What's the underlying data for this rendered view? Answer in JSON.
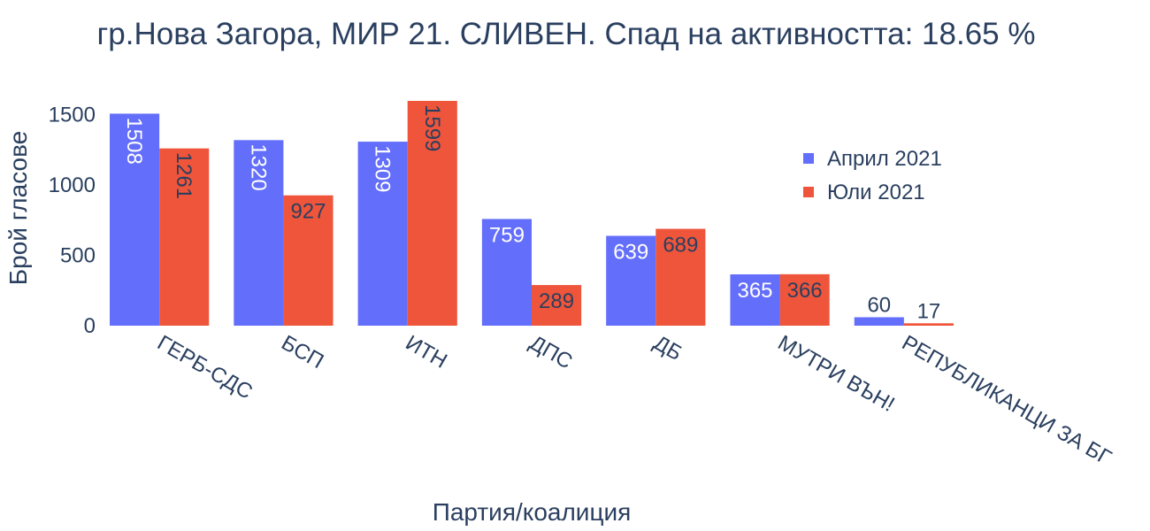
{
  "colors": {
    "series1": "#636efa",
    "series2": "#ef553b",
    "text": "#2a3f5f",
    "label_inside": "#ffffff",
    "label_outside": "#2a3f5f"
  },
  "chart_data": {
    "type": "bar",
    "title": "гр.Нова Загора, МИР 21. СЛИВЕН. Спад на активността: 18.65 %",
    "xlabel": "Партия/коалиция",
    "ylabel": "Брой гласове",
    "categories": [
      "ГЕРБ-СДС",
      "БСП",
      "ИТН",
      "ДПС",
      "ДБ",
      "МУТРИ ВЪН!",
      "РЕПУБЛИКАНЦИ ЗА БГ"
    ],
    "series": [
      {
        "name": "Април 2021",
        "values": [
          1508,
          1320,
          1309,
          759,
          639,
          365,
          60
        ]
      },
      {
        "name": "Юли 2021",
        "values": [
          1261,
          927,
          1599,
          289,
          689,
          366,
          17
        ]
      }
    ],
    "ylim": [
      0,
      1599
    ],
    "yticks": [
      0,
      500,
      1000,
      1500
    ],
    "grid": false,
    "legend_position": "top-right"
  }
}
